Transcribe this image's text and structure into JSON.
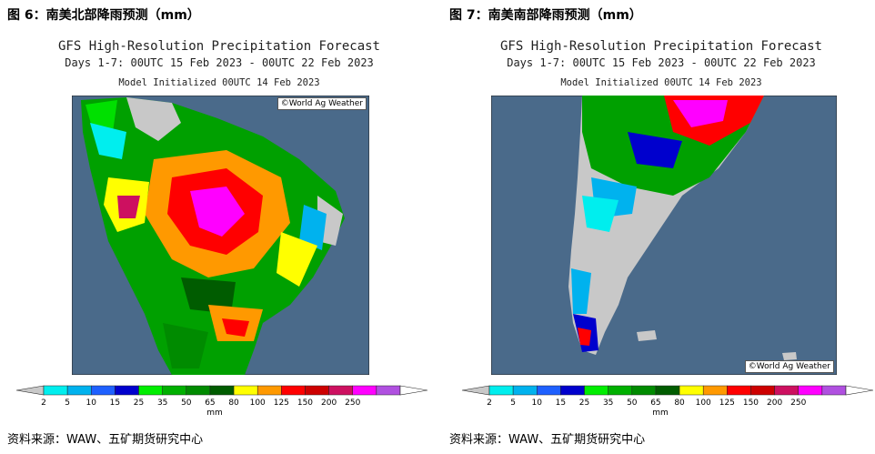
{
  "figures": [
    {
      "title": "图 6：南美北部降雨预测（mm）",
      "header": {
        "line1": "GFS High-Resolution Precipitation Forecast",
        "line2": "Days 1-7: 00UTC 15 Feb 2023 - 00UTC 22 Feb 2023",
        "line3": "Model Initialized 00UTC 14 Feb 2023"
      },
      "credit": "©World Ag Weather",
      "credit_position": "top-right",
      "source": "资料来源：WAW、五矿期货研究中心"
    },
    {
      "title": "图 7：南美南部降雨预测（mm）",
      "header": {
        "line1": "GFS High-Resolution Precipitation Forecast",
        "line2": "Days 1-7: 00UTC 15 Feb 2023 - 00UTC 22 Feb 2023",
        "line3": "Model Initialized 00UTC 14 Feb 2023"
      },
      "credit": "©World Ag Weather",
      "credit_position": "bottom-right",
      "source": "资料来源：WAW、五矿期货研究中心"
    }
  ],
  "colorbar": {
    "unit": "mm",
    "ticks": [
      "2",
      "5",
      "10",
      "15",
      "25",
      "35",
      "50",
      "65",
      "80",
      "100",
      "125",
      "150",
      "200",
      "250"
    ],
    "colors": [
      "#00eeee",
      "#00b2ee",
      "#1e60ff",
      "#0000cd",
      "#00ee00",
      "#00b000",
      "#008b00",
      "#005c00",
      "#ffff00",
      "#ff9900",
      "#ff0000",
      "#cd0000",
      "#cd1060",
      "#ff00ff",
      "#b050e0"
    ],
    "under_color": "#c8c8c8"
  },
  "map_colors": {
    "ocean": "#4a6a8a",
    "land_dry": "#c8c8c8"
  }
}
